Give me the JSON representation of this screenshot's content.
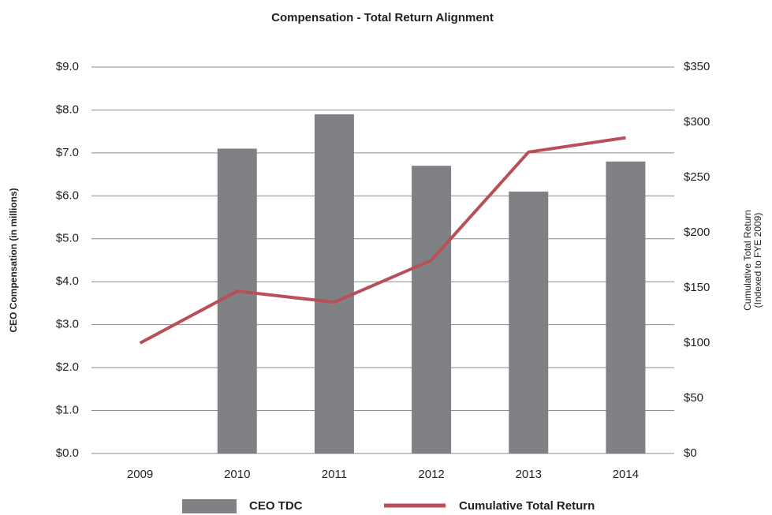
{
  "chart_data": {
    "type": "bar_line",
    "title": "Compensation - Total Return Alignment",
    "y_label": "CEO Compensation (in millions)",
    "y2_label": [
      "Cumulative Total Return",
      "(Indexed to FYE 2009)"
    ],
    "categories": [
      "2009",
      "2010",
      "2011",
      "2012",
      "2013",
      "2014"
    ],
    "series": [
      {
        "name": "CEO TDC",
        "type": "bar",
        "color": "#808184",
        "values": [
          null,
          7.1,
          7.9,
          6.7,
          6.1,
          6.8
        ]
      },
      {
        "name": "Cumulative Total Return",
        "type": "line",
        "axis": "y2",
        "color": "#b94f58",
        "values": [
          100,
          147,
          137,
          175,
          273,
          286
        ]
      }
    ],
    "ylim": [
      0,
      9
    ],
    "yticks": [
      {
        "value": 0,
        "label": "$0.0"
      },
      {
        "value": 1,
        "label": "$1.0"
      },
      {
        "value": 2,
        "label": "$2.0"
      },
      {
        "value": 3,
        "label": "$3.0"
      },
      {
        "value": 4,
        "label": "$4.0"
      },
      {
        "value": 5,
        "label": "$5.0"
      },
      {
        "value": 6,
        "label": "$6.0"
      },
      {
        "value": 7,
        "label": "$7.0"
      },
      {
        "value": 8,
        "label": "$8.0"
      },
      {
        "value": 9,
        "label": "$9.0"
      }
    ],
    "y2lim": [
      0,
      350
    ],
    "y2ticks": [
      {
        "value": 0,
        "label": "$0"
      },
      {
        "value": 50,
        "label": "$50"
      },
      {
        "value": 100,
        "label": "$100"
      },
      {
        "value": 150,
        "label": "$150"
      },
      {
        "value": 200,
        "label": "$200"
      },
      {
        "value": 250,
        "label": "$250"
      },
      {
        "value": 300,
        "label": "$300"
      },
      {
        "value": 350,
        "label": "$350"
      }
    ],
    "grid": true,
    "legend": "bottom"
  }
}
